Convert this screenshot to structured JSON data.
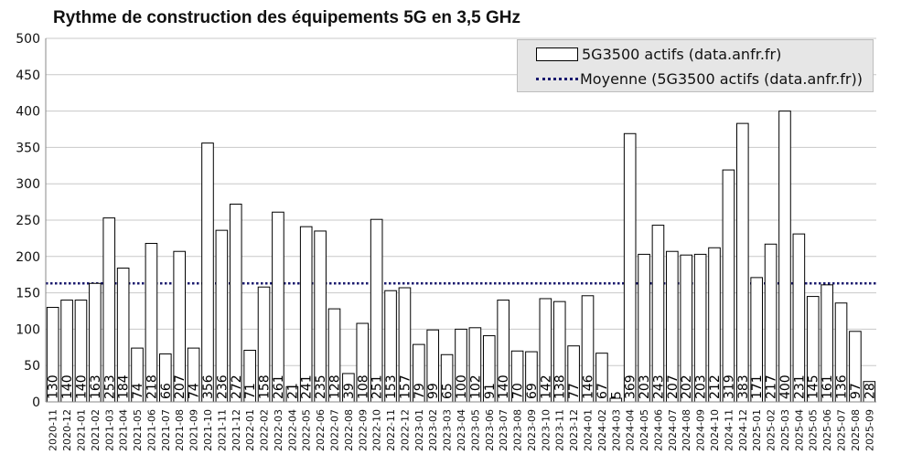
{
  "chart_data": {
    "type": "bar",
    "title": "Rythme de construction des équipements 5G en 3,5 GHz",
    "xlabel": "",
    "ylabel": "",
    "ylim": [
      0,
      500
    ],
    "yticks": [
      "0",
      "50",
      "100",
      "150",
      "200",
      "250",
      "300",
      "350",
      "400",
      "450",
      "500"
    ],
    "grid": true,
    "legend_position": "top-right",
    "categories": [
      "2020-11",
      "2020-12",
      "2021-01",
      "2021-02",
      "2021-03",
      "2021-04",
      "2021-05",
      "2021-06",
      "2021-07",
      "2021-08",
      "2021-09",
      "2021-10",
      "2021-11",
      "2021-12",
      "2022-01",
      "2022-02",
      "2022-03",
      "2022-04",
      "2022-05",
      "2022-06",
      "2022-07",
      "2022-08",
      "2022-09",
      "2022-10",
      "2022-11",
      "2022-12",
      "2023-01",
      "2023-02",
      "2023-03",
      "2023-04",
      "2023-05",
      "2023-06",
      "2023-07",
      "2023-08",
      "2023-09",
      "2023-10",
      "2023-11",
      "2023-12",
      "2024-01",
      "2024-02",
      "2024-03",
      "2024-04",
      "2024-05",
      "2024-06",
      "2024-07",
      "2024-08",
      "2024-09",
      "2024-10",
      "2024-11",
      "2024-12",
      "2025-01",
      "2025-02",
      "2025-03",
      "2025-04",
      "2025-05",
      "2025-06",
      "2025-07",
      "2025-08",
      "2025-09"
    ],
    "series": [
      {
        "name": "5G3500 actifs (data.anfr.fr)",
        "values": [
          130,
          140,
          140,
          163,
          253,
          184,
          74,
          218,
          66,
          207,
          74,
          356,
          236,
          272,
          71,
          158,
          261,
          21,
          241,
          235,
          128,
          39,
          108,
          251,
          153,
          157,
          79,
          99,
          65,
          100,
          102,
          91,
          140,
          70,
          69,
          142,
          138,
          77,
          146,
          67,
          5,
          369,
          203,
          243,
          207,
          202,
          203,
          212,
          319,
          383,
          171,
          217,
          400,
          231,
          145,
          161,
          136,
          97,
          28
        ]
      }
    ],
    "average": {
      "name": "Moyenne (5G3500 actifs (data.anfr.fr))",
      "value": 163
    },
    "colors": {
      "bar_fill": "#ffffff",
      "bar_stroke": "#000000",
      "average_line": "#1a1a6e",
      "grid": "#c8c8c8",
      "legend_bg": "#e6e6e6"
    }
  }
}
